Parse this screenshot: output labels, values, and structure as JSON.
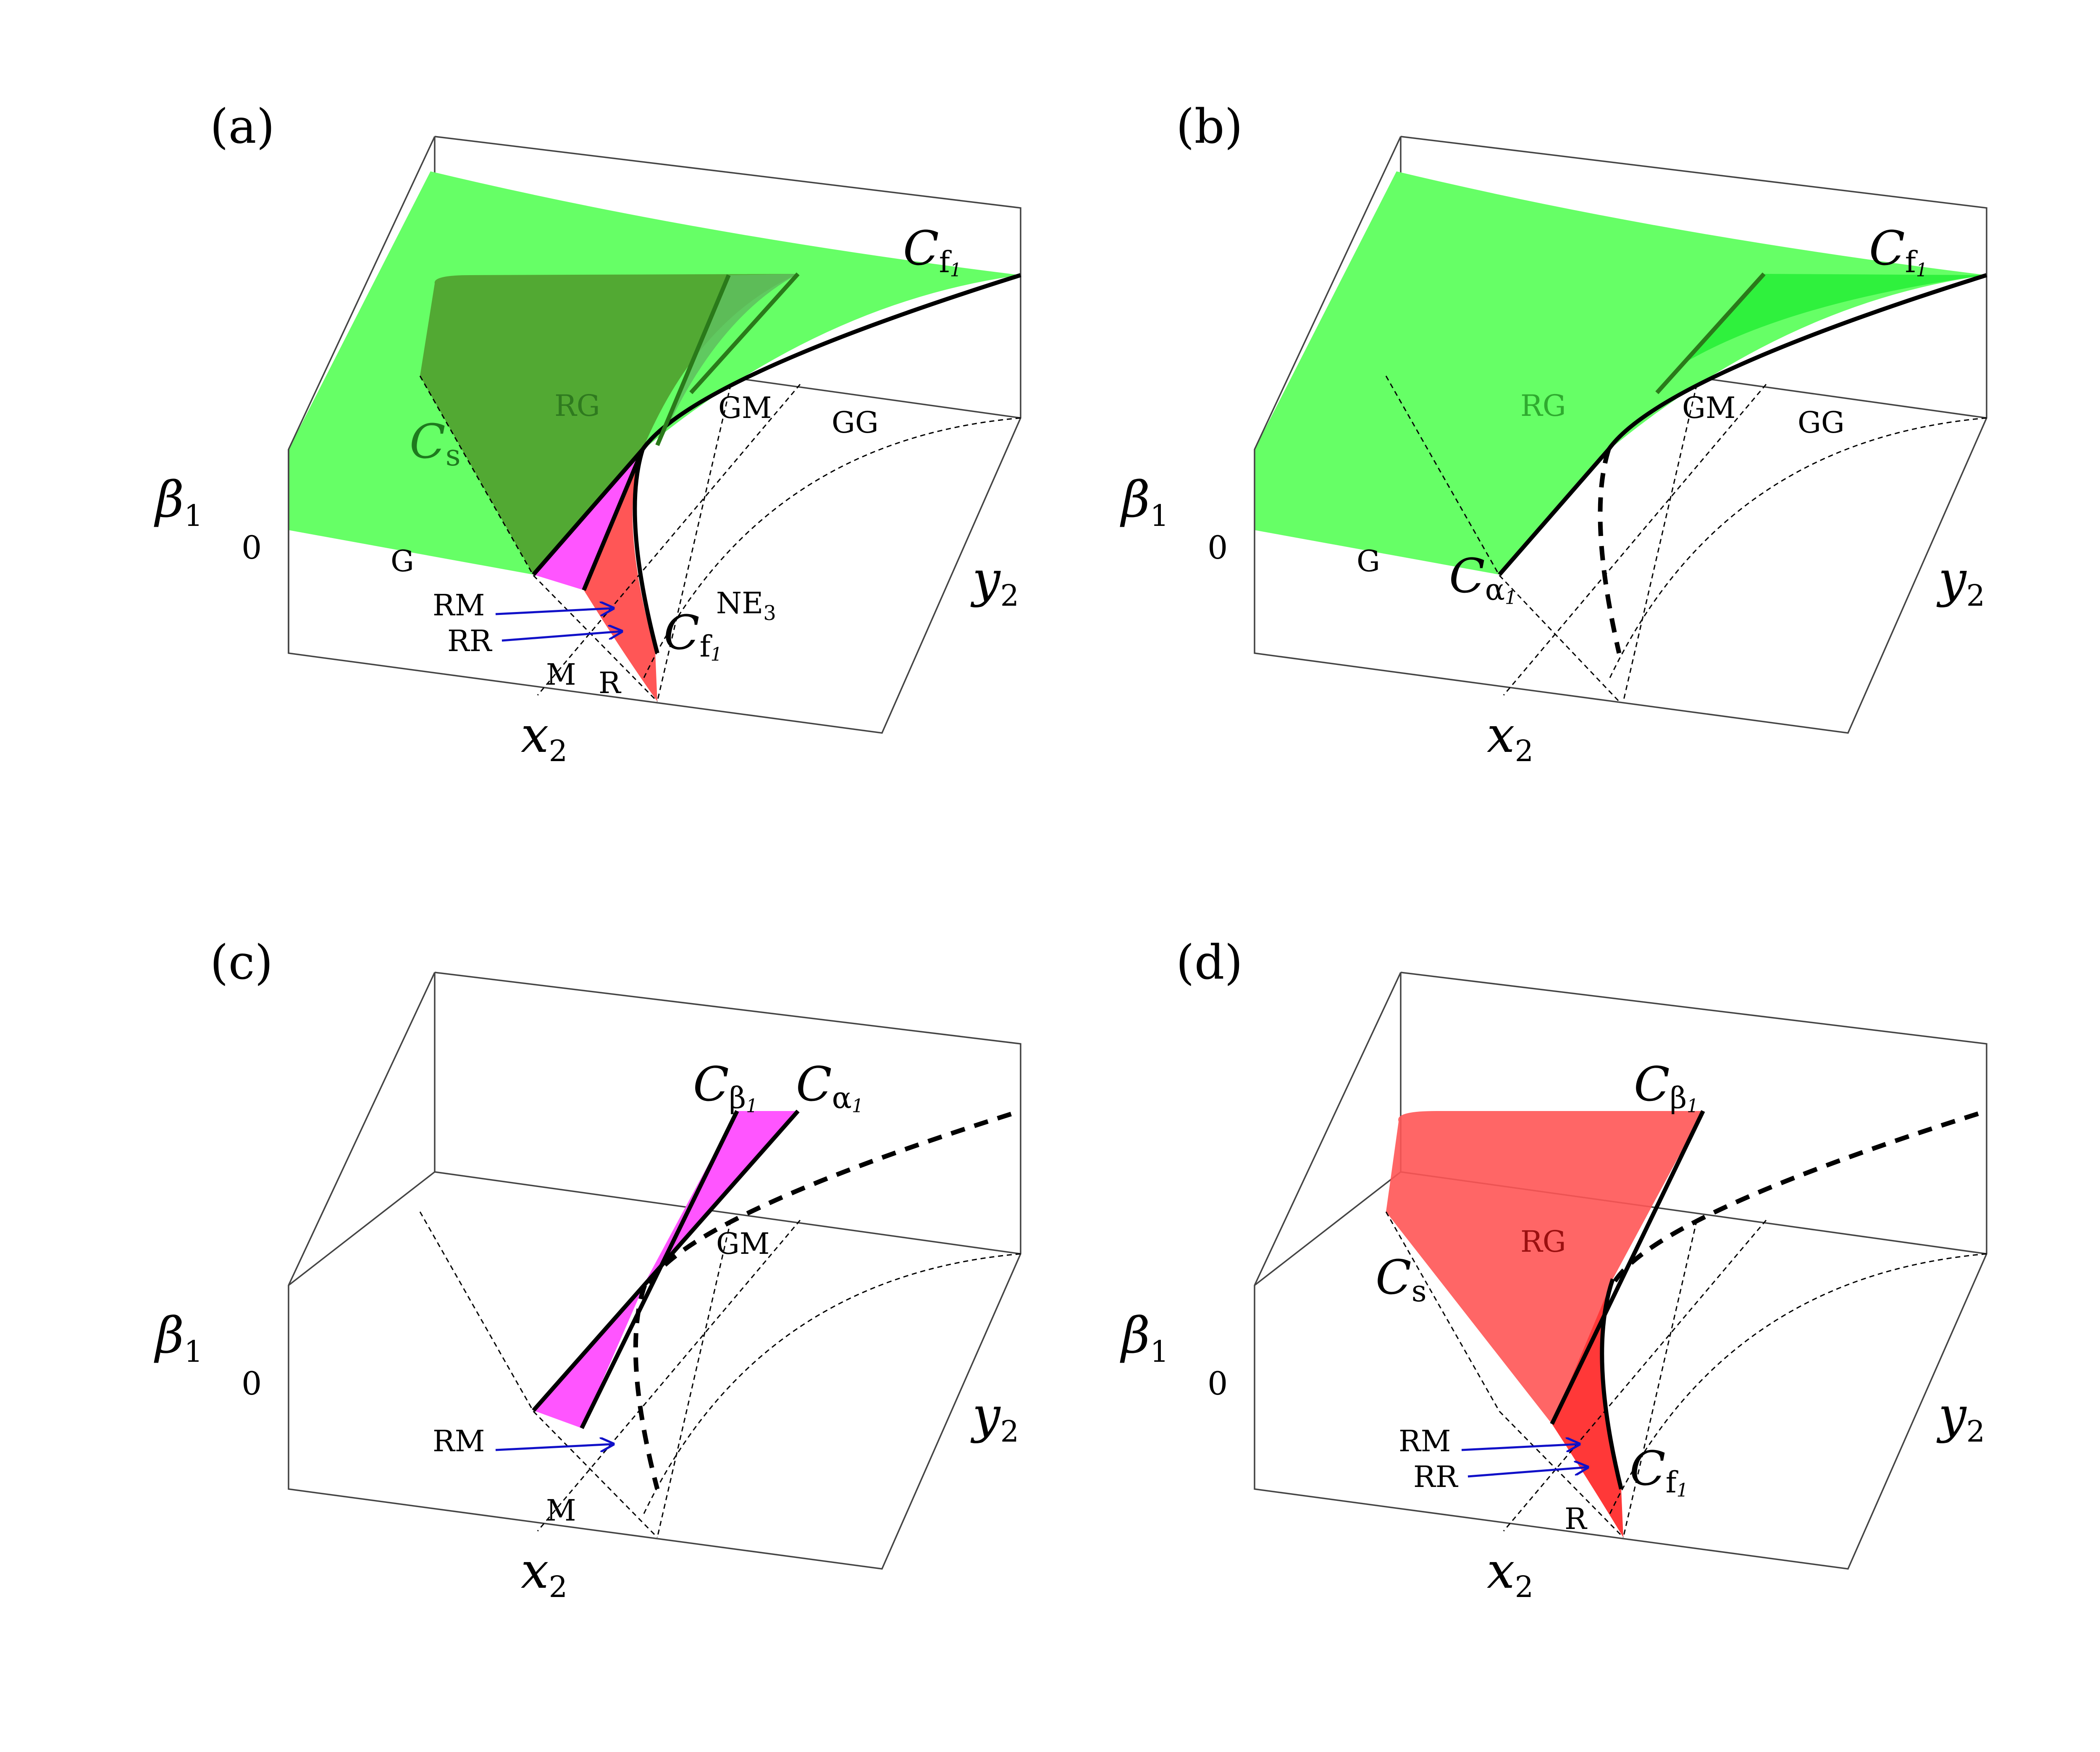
{
  "panels": [
    {
      "id": "a",
      "label": "(a)",
      "axes": {
        "z": "β",
        "z_sub": "1",
        "x": "x",
        "x_sub": "2",
        "y": "y",
        "y_sub": "2",
        "zero": "0"
      },
      "regions": [
        "RG",
        "GM",
        "GG",
        "G",
        "M",
        "R",
        "NE"
      ],
      "ne_sub": "3",
      "arrow_labels": [
        "RM",
        "RR"
      ],
      "curves": [
        {
          "base": "C",
          "sub": "f",
          "subsub": "1"
        },
        {
          "base": "C",
          "sub": "s"
        },
        {
          "base": "C",
          "sub": "f",
          "subsub": "1"
        }
      ]
    },
    {
      "id": "b",
      "label": "(b)",
      "axes": {
        "z": "β",
        "z_sub": "1",
        "x": "x",
        "x_sub": "2",
        "y": "y",
        "y_sub": "2",
        "zero": "0"
      },
      "regions": [
        "RG",
        "GM",
        "GG",
        "G"
      ],
      "curves": [
        {
          "base": "C",
          "sub": "f",
          "subsub": "1"
        },
        {
          "base": "C",
          "sub": "α",
          "subsub": "1"
        }
      ]
    },
    {
      "id": "c",
      "label": "(c)",
      "axes": {
        "z": "β",
        "z_sub": "1",
        "x": "x",
        "x_sub": "2",
        "y": "y",
        "y_sub": "2",
        "zero": "0"
      },
      "regions": [
        "GM",
        "M"
      ],
      "arrow_labels": [
        "RM"
      ],
      "curves": [
        {
          "base": "C",
          "sub": "β",
          "subsub": "1"
        },
        {
          "base": "C",
          "sub": "α",
          "subsub": "1"
        }
      ]
    },
    {
      "id": "d",
      "label": "(d)",
      "axes": {
        "z": "β",
        "z_sub": "1",
        "x": "x",
        "x_sub": "2",
        "y": "y",
        "y_sub": "2",
        "zero": "0"
      },
      "regions": [
        "RG",
        "R"
      ],
      "arrow_labels": [
        "RM",
        "RR"
      ],
      "curves": [
        {
          "base": "C",
          "sub": "β",
          "subsub": "1"
        },
        {
          "base": "C",
          "sub": "s"
        },
        {
          "base": "C",
          "sub": "f",
          "subsub": "1"
        }
      ]
    }
  ],
  "colors": {
    "green_surface": "#66ff66",
    "dark_green": "#4f9a2a",
    "magenta": "#ff55ff",
    "red": "#ff5555",
    "arrow_blue": "#1010c8"
  }
}
